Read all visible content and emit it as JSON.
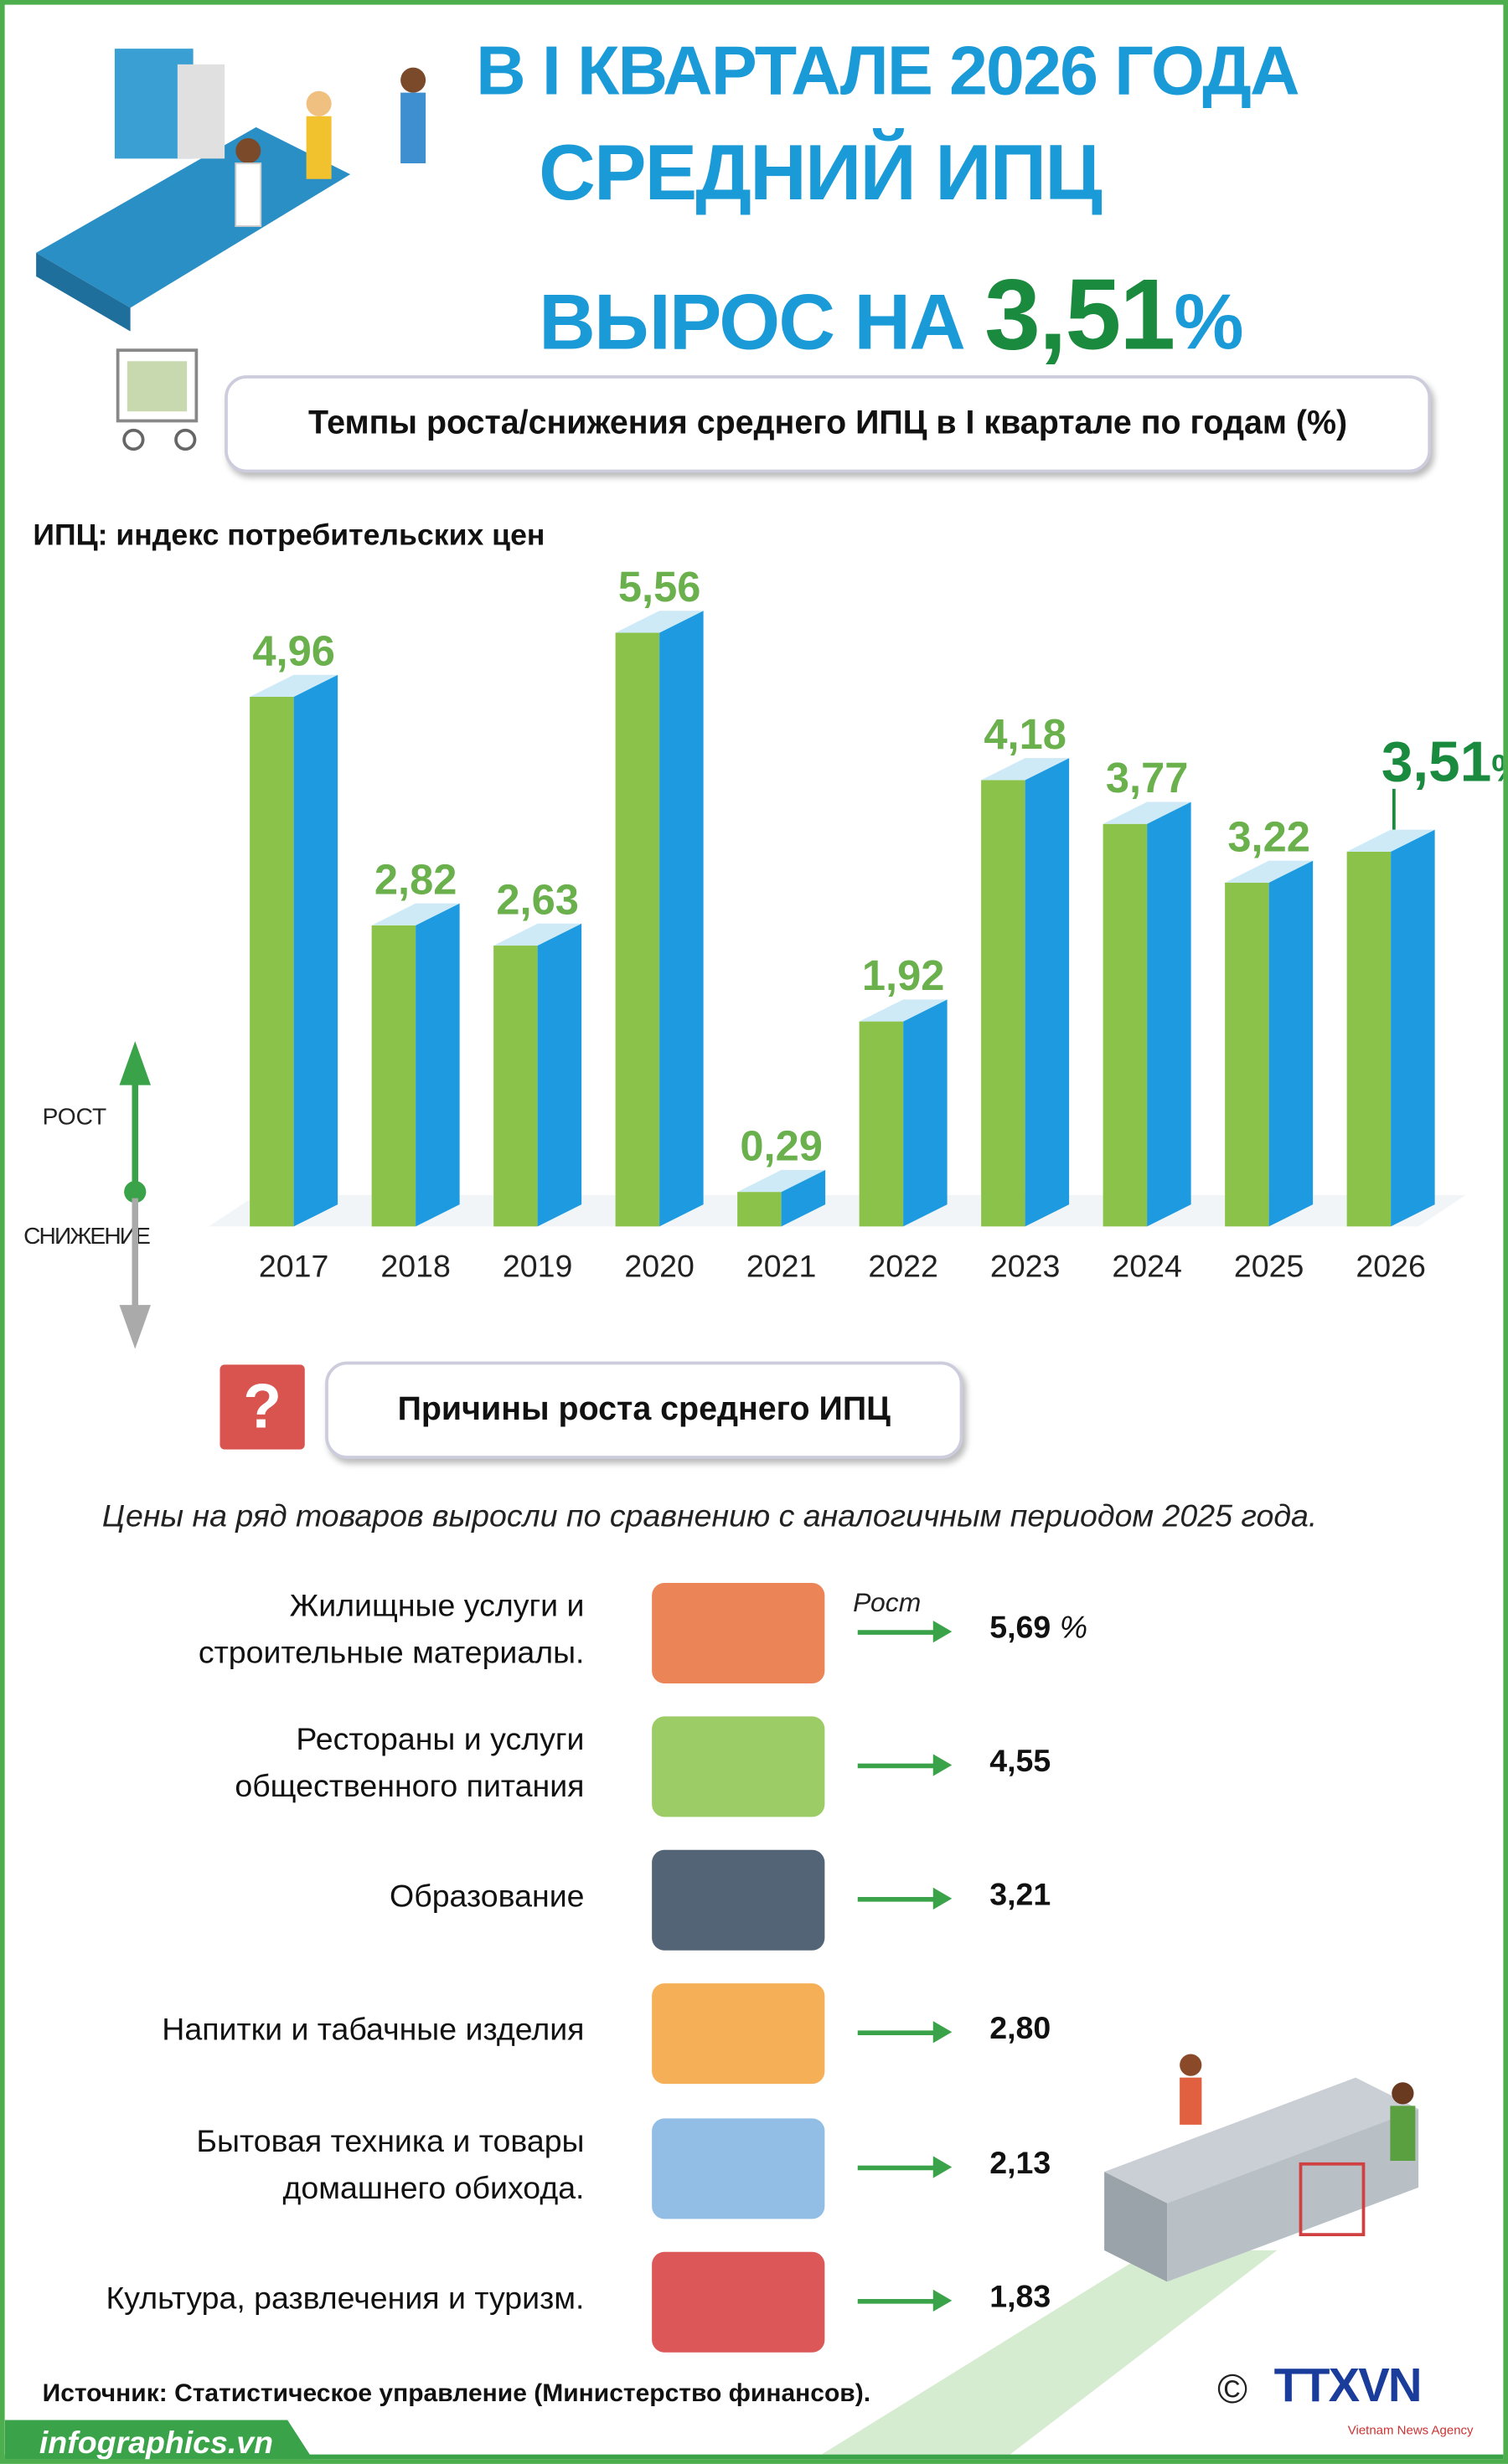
{
  "header": {
    "line1": "В I КВАРТАЛЕ 2026 ГОДА",
    "line2": "СРЕДНИЙ ИПЦ",
    "line3_prefix": "ВЫРОС НА",
    "line3_value": "3,51",
    "line3_unit": "%"
  },
  "subtitle": "Темпы роста/снижения среднего ИПЦ в I квартале по годам (%)",
  "note": "ИПЦ: индекс потребительских цен",
  "legend": {
    "up": "РОСТ",
    "down": "СНИЖЕНИЕ"
  },
  "chart_data": {
    "type": "bar",
    "title": "Темпы роста/снижения среднего ИПЦ в I квартале по годам (%)",
    "categories": [
      "2017",
      "2018",
      "2019",
      "2020",
      "2021",
      "2022",
      "2023",
      "2024",
      "2025",
      "2026"
    ],
    "values": [
      4.96,
      2.82,
      2.63,
      5.56,
      0.29,
      1.92,
      4.18,
      3.77,
      3.22,
      3.51
    ],
    "labels": [
      "4,96",
      "2,82",
      "2,63",
      "5,56",
      "0,29",
      "1,92",
      "4,18",
      "3,77",
      "3,22",
      "3,51"
    ],
    "highlight_unit": "%",
    "colors": {
      "front": "#8bc34a",
      "side": "#1e9be0",
      "top": "#cfeaf7",
      "label": "#6ab04c",
      "highlight": "#1a8a3e"
    }
  },
  "reasons": {
    "question_mark": "?",
    "title": "Причины роста среднего ИПЦ",
    "intro": "Цены на ряд товаров выросли по сравнению с аналогичным периодом 2025 года.",
    "growth_label": "Рост",
    "items": [
      {
        "label": "Жилищные услуги и строительные материалы.",
        "value": "5,69",
        "unit": "%",
        "icon": "bricks-icon"
      },
      {
        "label": "Рестораны и услуги общественного питания",
        "value": "4,55",
        "icon": "food-plate-icon"
      },
      {
        "label": "Образование",
        "value": "3,21",
        "icon": "graduation-cap-icon"
      },
      {
        "label": "Напитки и табачные изделия",
        "value": "2,80",
        "icon": "drinks-cigarettes-icon"
      },
      {
        "label": "Бытовая техника и товары домашнего обихода.",
        "value": "2,13",
        "icon": "appliances-icon"
      },
      {
        "label": "Культура, развлечения и туризм.",
        "value": "1,83",
        "icon": "popcorn-cinema-icon"
      }
    ]
  },
  "footer": {
    "source": "Источник: Статистическое управление (Министерство финансов).",
    "site": "infographics.vn",
    "copyright": "©",
    "logo": "TTXVN",
    "logo_sub": "Vietnam News Agency"
  }
}
